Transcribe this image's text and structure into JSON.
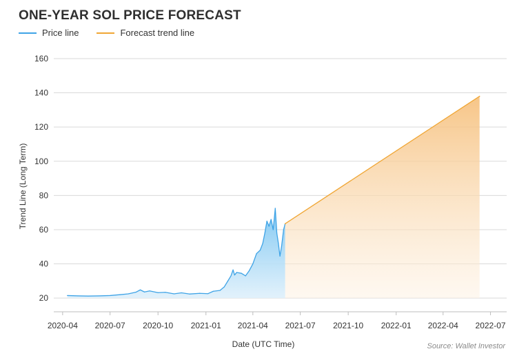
{
  "chart_data": {
    "type": "area",
    "title": "ONE-YEAR SOL PRICE FORECAST",
    "xlabel": "Date (UTC Time)",
    "ylabel": "Trend Line (Long Term)",
    "source": "Source: Wallet Investor",
    "ylim": [
      12,
      162
    ],
    "xlim": [
      "2020-03-15",
      "2022-08-01"
    ],
    "y_ticks": [
      20,
      40,
      60,
      80,
      100,
      120,
      140,
      160
    ],
    "x_ticks": [
      "2020-04",
      "2020-07",
      "2020-10",
      "2021-01",
      "2021-04",
      "2021-07",
      "2021-10",
      "2022-01",
      "2022-04",
      "2022-07"
    ],
    "grid": true,
    "legend_position": "top-left",
    "series": [
      {
        "name": "Price line",
        "color": "#3ea3e6",
        "points": [
          [
            "2020-04-10",
            21.5
          ],
          [
            "2020-05-01",
            21.3
          ],
          [
            "2020-05-20",
            21.2
          ],
          [
            "2020-06-10",
            21.3
          ],
          [
            "2020-07-01",
            21.5
          ],
          [
            "2020-07-20",
            22.0
          ],
          [
            "2020-08-05",
            22.5
          ],
          [
            "2020-08-20",
            23.5
          ],
          [
            "2020-08-28",
            24.8
          ],
          [
            "2020-09-05",
            23.6
          ],
          [
            "2020-09-15",
            24.2
          ],
          [
            "2020-10-01",
            23.2
          ],
          [
            "2020-10-15",
            23.4
          ],
          [
            "2020-11-01",
            22.5
          ],
          [
            "2020-11-15",
            23.1
          ],
          [
            "2020-12-01",
            22.4
          ],
          [
            "2020-12-20",
            22.8
          ],
          [
            "2021-01-05",
            22.6
          ],
          [
            "2021-01-15",
            24.0
          ],
          [
            "2021-01-28",
            24.5
          ],
          [
            "2021-02-05",
            26.5
          ],
          [
            "2021-02-12",
            30.0
          ],
          [
            "2021-02-18",
            33.0
          ],
          [
            "2021-02-22",
            36.5
          ],
          [
            "2021-02-25",
            33.5
          ],
          [
            "2021-03-01",
            35.0
          ],
          [
            "2021-03-10",
            34.5
          ],
          [
            "2021-03-18",
            33.0
          ],
          [
            "2021-03-25",
            36.0
          ],
          [
            "2021-04-01",
            40.0
          ],
          [
            "2021-04-08",
            46.0
          ],
          [
            "2021-04-15",
            48.0
          ],
          [
            "2021-04-20",
            52.0
          ],
          [
            "2021-04-24",
            58.0
          ],
          [
            "2021-04-28",
            65.0
          ],
          [
            "2021-05-02",
            62.0
          ],
          [
            "2021-05-06",
            66.0
          ],
          [
            "2021-05-10",
            60.0
          ],
          [
            "2021-05-14",
            72.5
          ],
          [
            "2021-05-17",
            58.0
          ],
          [
            "2021-05-20",
            52.0
          ],
          [
            "2021-05-23",
            44.5
          ],
          [
            "2021-05-26",
            50.0
          ],
          [
            "2021-05-30",
            60.0
          ],
          [
            "2021-06-02",
            63.5
          ]
        ]
      },
      {
        "name": "Forecast trend line",
        "color": "#f0a634",
        "points": [
          [
            "2021-06-02",
            63.5
          ],
          [
            "2022-06-10",
            138.0
          ]
        ]
      }
    ]
  },
  "legend": {
    "price_label": "Price line",
    "forecast_label": "Forecast trend line"
  }
}
